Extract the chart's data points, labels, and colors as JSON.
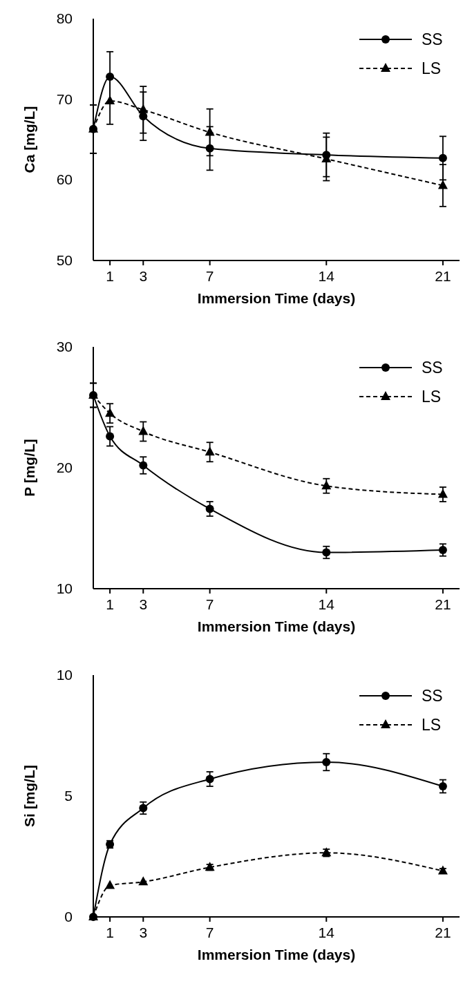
{
  "chart_data": [
    {
      "type": "line",
      "ylabel": "Ca [mg/L]",
      "xlabel": "Immersion Time (days)",
      "x": [
        0,
        1,
        3,
        7,
        14,
        21
      ],
      "xlim": [
        0,
        22
      ],
      "xticks": [
        1,
        3,
        7,
        14,
        21
      ],
      "ylim": [
        50,
        80
      ],
      "yticks": [
        50,
        60,
        70,
        80
      ],
      "legend": "top right",
      "grid": false,
      "series": [
        {
          "name": "SS",
          "color": "#000000",
          "marker": "circle",
          "line_style": "solid",
          "values": [
            66.3,
            72.8,
            67.9,
            63.9,
            63.1,
            62.7
          ],
          "errors": [
            3,
            3.1,
            3,
            2.7,
            2.7,
            2.7
          ]
        },
        {
          "name": "LS",
          "color": "#000000",
          "marker": "triangle",
          "line_style": "dashed",
          "values": [
            66.3,
            69.8,
            68.7,
            65.9,
            62.6,
            59.3
          ],
          "errors": [
            3,
            2.9,
            2.9,
            2.9,
            2.7,
            2.6
          ]
        }
      ]
    },
    {
      "type": "line",
      "ylabel": "P [mg/L]",
      "xlabel": "Immersion Time (days)",
      "x": [
        0,
        1,
        3,
        7,
        14,
        21
      ],
      "xlim": [
        0,
        22
      ],
      "xticks": [
        1,
        3,
        7,
        14,
        21
      ],
      "ylim": [
        10,
        30
      ],
      "yticks": [
        10,
        20,
        30
      ],
      "legend": "top right",
      "grid": false,
      "series": [
        {
          "name": "SS",
          "color": "#000000",
          "marker": "circle",
          "line_style": "solid",
          "values": [
            26,
            22.6,
            20.2,
            16.6,
            13,
            13.2
          ],
          "errors": [
            1,
            0.8,
            0.7,
            0.6,
            0.5,
            0.5
          ]
        },
        {
          "name": "LS",
          "color": "#000000",
          "marker": "triangle",
          "line_style": "dashed",
          "values": [
            26,
            24.5,
            23,
            21.3,
            18.5,
            17.8
          ],
          "errors": [
            1,
            0.8,
            0.8,
            0.8,
            0.6,
            0.6
          ]
        }
      ]
    },
    {
      "type": "line",
      "ylabel": "Si [mg/L]",
      "xlabel": "Immersion Time (days)",
      "x": [
        0,
        1,
        3,
        7,
        14,
        21
      ],
      "xlim": [
        0,
        22
      ],
      "xticks": [
        1,
        3,
        7,
        14,
        21
      ],
      "ylim": [
        0,
        10
      ],
      "yticks": [
        0,
        5,
        10
      ],
      "legend": "top right",
      "grid": false,
      "series": [
        {
          "name": "SS",
          "color": "#000000",
          "marker": "circle",
          "line_style": "solid",
          "values": [
            0,
            3,
            4.5,
            5.7,
            6.4,
            5.4
          ],
          "errors": [
            null,
            0.15,
            0.25,
            0.3,
            0.35,
            0.27
          ]
        },
        {
          "name": "LS",
          "color": "#000000",
          "marker": "triangle",
          "line_style": "dashed",
          "values": [
            0,
            1.3,
            1.45,
            2.05,
            2.65,
            1.9
          ],
          "errors": [
            null,
            null,
            null,
            0.12,
            0.15,
            0.1
          ]
        }
      ]
    }
  ]
}
